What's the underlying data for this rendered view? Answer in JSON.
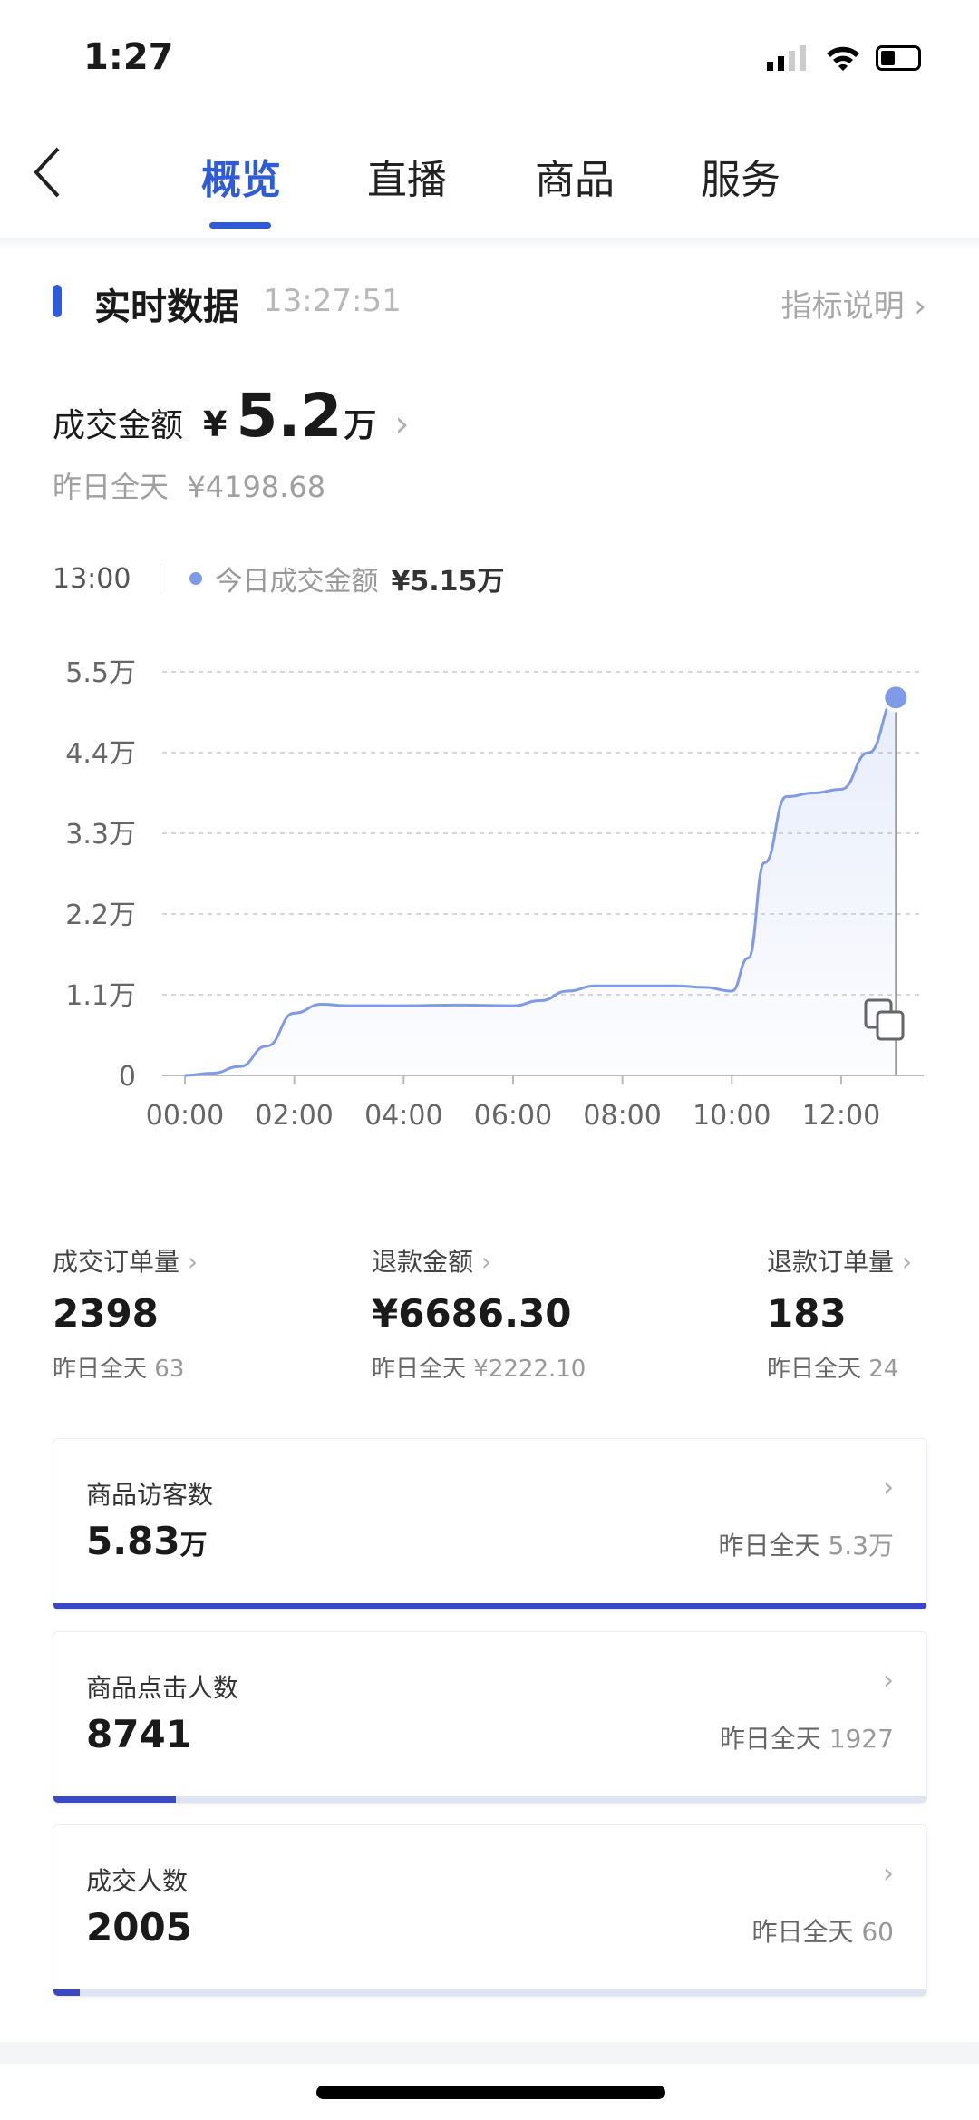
{
  "status_bar": {
    "time": "1:27"
  },
  "tabs": [
    {
      "label": "概览",
      "active": true
    },
    {
      "label": "直播"
    },
    {
      "label": "商品"
    },
    {
      "label": "服务"
    }
  ],
  "section": {
    "title": "实时数据",
    "timestamp": "13:27:51",
    "help_link": "指标说明"
  },
  "gmv": {
    "label": "成交金额",
    "currency": "¥",
    "value": "5.2",
    "unit": "万",
    "yesterday_label": "昨日全天",
    "yesterday_value": "¥4198.68"
  },
  "tooltip": {
    "time": "13:00",
    "series": "今日成交金额",
    "value": "¥5.15万"
  },
  "chart_data": {
    "type": "area",
    "x_ticks": [
      "00:00",
      "02:00",
      "04:00",
      "06:00",
      "08:00",
      "10:00",
      "12:00"
    ],
    "y_ticks": [
      "0",
      "1.1万",
      "2.2万",
      "3.3万",
      "4.4万",
      "5.5万"
    ],
    "ylim": [
      0,
      5.5
    ],
    "xlim_hours": [
      0,
      13.5
    ],
    "grid": true,
    "series": [
      {
        "name": "今日成交金额",
        "color": "#7f9be8",
        "x": [
          0,
          0.5,
          1,
          1.5,
          2,
          2.5,
          3,
          4,
          5,
          6,
          6.5,
          7,
          7.5,
          8,
          9,
          9.5,
          10,
          10.3,
          10.6,
          11,
          11.5,
          12,
          12.5,
          13
        ],
        "y": [
          0,
          0.03,
          0.12,
          0.4,
          0.85,
          0.97,
          0.95,
          0.95,
          0.96,
          0.95,
          1.02,
          1.15,
          1.22,
          1.22,
          1.22,
          1.2,
          1.15,
          1.6,
          2.9,
          3.8,
          3.85,
          3.9,
          4.4,
          5.15
        ]
      }
    ]
  },
  "metrics": [
    {
      "label": "成交订单量",
      "value": "2398",
      "yesterday_label": "昨日全天",
      "yesterday_value": "63"
    },
    {
      "label": "退款金额",
      "value": "¥6686.30",
      "yesterday_label": "昨日全天",
      "yesterday_value": "¥2222.10"
    },
    {
      "label": "退款订单量",
      "value": "183",
      "yesterday_label": "昨日全天",
      "yesterday_value": "24"
    }
  ],
  "cards": [
    {
      "label": "商品访客数",
      "value": "5.83",
      "unit": "万",
      "yesterday_label": "昨日全天",
      "yesterday_value": "5.3万",
      "progress": 1.0
    },
    {
      "label": "商品点击人数",
      "value": "8741",
      "unit": "",
      "yesterday_label": "昨日全天",
      "yesterday_value": "1927",
      "progress": 0.14
    },
    {
      "label": "成交人数",
      "value": "2005",
      "unit": "",
      "yesterday_label": "昨日全天",
      "yesterday_value": "60",
      "progress": 0.03
    }
  ],
  "colors": {
    "accent": "#2f5bd8",
    "bar": "#3b48c4",
    "line": "#7f9be8"
  }
}
